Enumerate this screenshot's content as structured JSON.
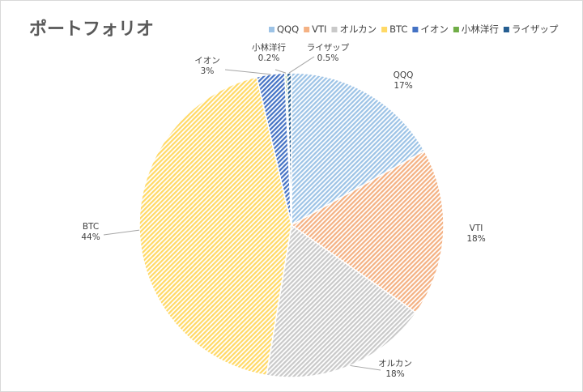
{
  "chart_data": {
    "type": "pie",
    "title": "ポートフォリオ",
    "categories": [
      "QQQ",
      "VTI",
      "オルカン",
      "BTC",
      "イオン",
      "小林洋行",
      "ライザップ"
    ],
    "values": [
      17,
      18,
      18,
      44,
      3,
      0.2,
      0.5
    ],
    "value_labels": [
      "17%",
      "18%",
      "18%",
      "44%",
      "3%",
      "0.2%",
      "0.5%"
    ],
    "colors": [
      "#9dc3e6",
      "#f4b183",
      "#c9c9c9",
      "#ffd966",
      "#4472c4",
      "#70ad47",
      "#255e91"
    ],
    "legend": "top-right",
    "fill_pattern": "diagonal-hatch"
  }
}
